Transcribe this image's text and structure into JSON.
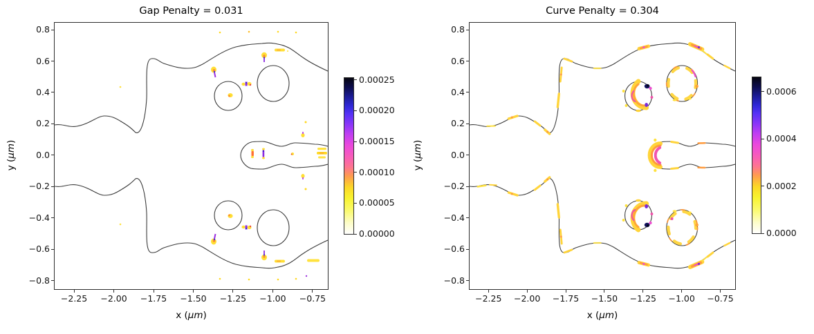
{
  "figure": {
    "background": "#ffffff",
    "outline_color": "#3a3a3a",
    "structure": "waveguide boundary contour with four circular holes and central tongue"
  },
  "chart_data": [
    {
      "type": "contour-map",
      "title": "Gap Penalty = 0.031",
      "penalty_value": 0.031,
      "xlabel_prefix": "x (",
      "ylabel_prefix": "y (",
      "unit": "μm",
      "label_suffix": ")",
      "xlim": [
        -2.372,
        -0.654
      ],
      "ylim": [
        -0.853,
        0.844
      ],
      "x_tick_values": [
        -2.25,
        -2.0,
        -1.75,
        -1.5,
        -1.25,
        -1.0,
        -0.75
      ],
      "x_tick_labels": [
        "−2.25",
        "−2.00",
        "−1.75",
        "−1.50",
        "−1.25",
        "−1.00",
        "−0.75"
      ],
      "y_tick_values": [
        0.8,
        0.6,
        0.4,
        0.2,
        0.0,
        -0.2,
        -0.4,
        -0.6,
        -0.8
      ],
      "y_tick_labels": [
        "0.8",
        "0.6",
        "0.4",
        "0.2",
        "0.0",
        "−0.2",
        "−0.4",
        "−0.6",
        "−0.8"
      ],
      "grid": false,
      "colorbar": {
        "tick_values": [
          0.0,
          5e-05,
          0.0001,
          0.00015,
          0.0002,
          0.00025
        ],
        "tick_labels": [
          "0.00000",
          "0.00005",
          "0.00010",
          "0.00015",
          "0.00020",
          "0.00025"
        ],
        "scale_max": 0.000253,
        "colormap": "gnuplot2_r (white→yellow→pink→violet→blue→black)"
      },
      "hotspots_xy": [
        [
          -1.37,
          0.55
        ],
        [
          -1.17,
          0.46
        ],
        [
          -1.27,
          0.38
        ],
        [
          -1.05,
          0.64
        ],
        [
          -0.96,
          0.67
        ],
        [
          -1.33,
          0.78
        ],
        [
          -1.15,
          0.79
        ],
        [
          -0.97,
          0.79
        ],
        [
          -0.86,
          0.78
        ],
        [
          -0.79,
          0.21
        ],
        [
          -0.81,
          0.13
        ],
        [
          -1.96,
          0.44
        ],
        [
          -1.13,
          0.0
        ],
        [
          -1.06,
          0.0
        ],
        [
          -0.87,
          0.0
        ],
        [
          -0.7,
          0.02
        ],
        [
          -0.7,
          0.0
        ],
        [
          -0.7,
          -0.02
        ],
        [
          -1.37,
          -0.55
        ],
        [
          -1.17,
          -0.46
        ],
        [
          -1.27,
          -0.38
        ],
        [
          -1.05,
          -0.64
        ],
        [
          -0.96,
          -0.67
        ],
        [
          -0.8,
          -0.66
        ],
        [
          -0.79,
          -0.21
        ],
        [
          -0.81,
          -0.13
        ],
        [
          -1.33,
          -0.78
        ],
        [
          -1.15,
          -0.79
        ],
        [
          -0.97,
          -0.79
        ],
        [
          -0.86,
          -0.78
        ],
        [
          -1.96,
          -0.44
        ]
      ]
    },
    {
      "type": "contour-map",
      "title": "Curve Penalty = 0.304",
      "penalty_value": 0.304,
      "xlabel_prefix": "x (",
      "ylabel_prefix": "y (",
      "unit": "μm",
      "label_suffix": ")",
      "xlim": [
        -2.372,
        -0.654
      ],
      "ylim": [
        -0.853,
        0.844
      ],
      "x_tick_values": [
        -2.25,
        -2.0,
        -1.75,
        -1.5,
        -1.25,
        -1.0,
        -0.75
      ],
      "x_tick_labels": [
        "−2.25",
        "−2.00",
        "−1.75",
        "−1.50",
        "−1.25",
        "−1.00",
        "−0.75"
      ],
      "y_tick_values": [
        0.8,
        0.6,
        0.4,
        0.2,
        0.0,
        -0.2,
        -0.4,
        -0.6,
        -0.8
      ],
      "y_tick_labels": [
        "0.8",
        "0.6",
        "0.4",
        "0.2",
        "0.0",
        "−0.2",
        "−0.4",
        "−0.6",
        "−0.8"
      ],
      "grid": false,
      "colorbar": {
        "tick_values": [
          0.0,
          0.0002,
          0.0004,
          0.0006
        ],
        "tick_labels": [
          "0.0000",
          "0.0002",
          "0.0004",
          "0.0006"
        ],
        "scale_max": 0.000661,
        "colormap": "gnuplot2_r (white→yellow→pink→violet→blue→black)"
      },
      "hotspots_xy": [
        [
          -1.32,
          0.38
        ],
        [
          -1.04,
          0.46
        ],
        [
          -1.32,
          -0.38
        ],
        [
          -1.04,
          -0.46
        ],
        [
          -1.27,
          0.0
        ],
        [
          -2.07,
          0.25
        ],
        [
          -1.89,
          0.15
        ],
        [
          -1.81,
          0.45
        ],
        [
          -1.77,
          0.61
        ],
        [
          -1.3,
          0.7
        ],
        [
          -0.92,
          0.7
        ],
        [
          -0.83,
          0.58
        ],
        [
          -2.07,
          -0.25
        ],
        [
          -1.89,
          -0.15
        ],
        [
          -1.81,
          -0.45
        ],
        [
          -1.77,
          -0.61
        ],
        [
          -1.3,
          -0.7
        ],
        [
          -0.92,
          -0.7
        ],
        [
          -0.83,
          -0.58
        ]
      ]
    }
  ]
}
